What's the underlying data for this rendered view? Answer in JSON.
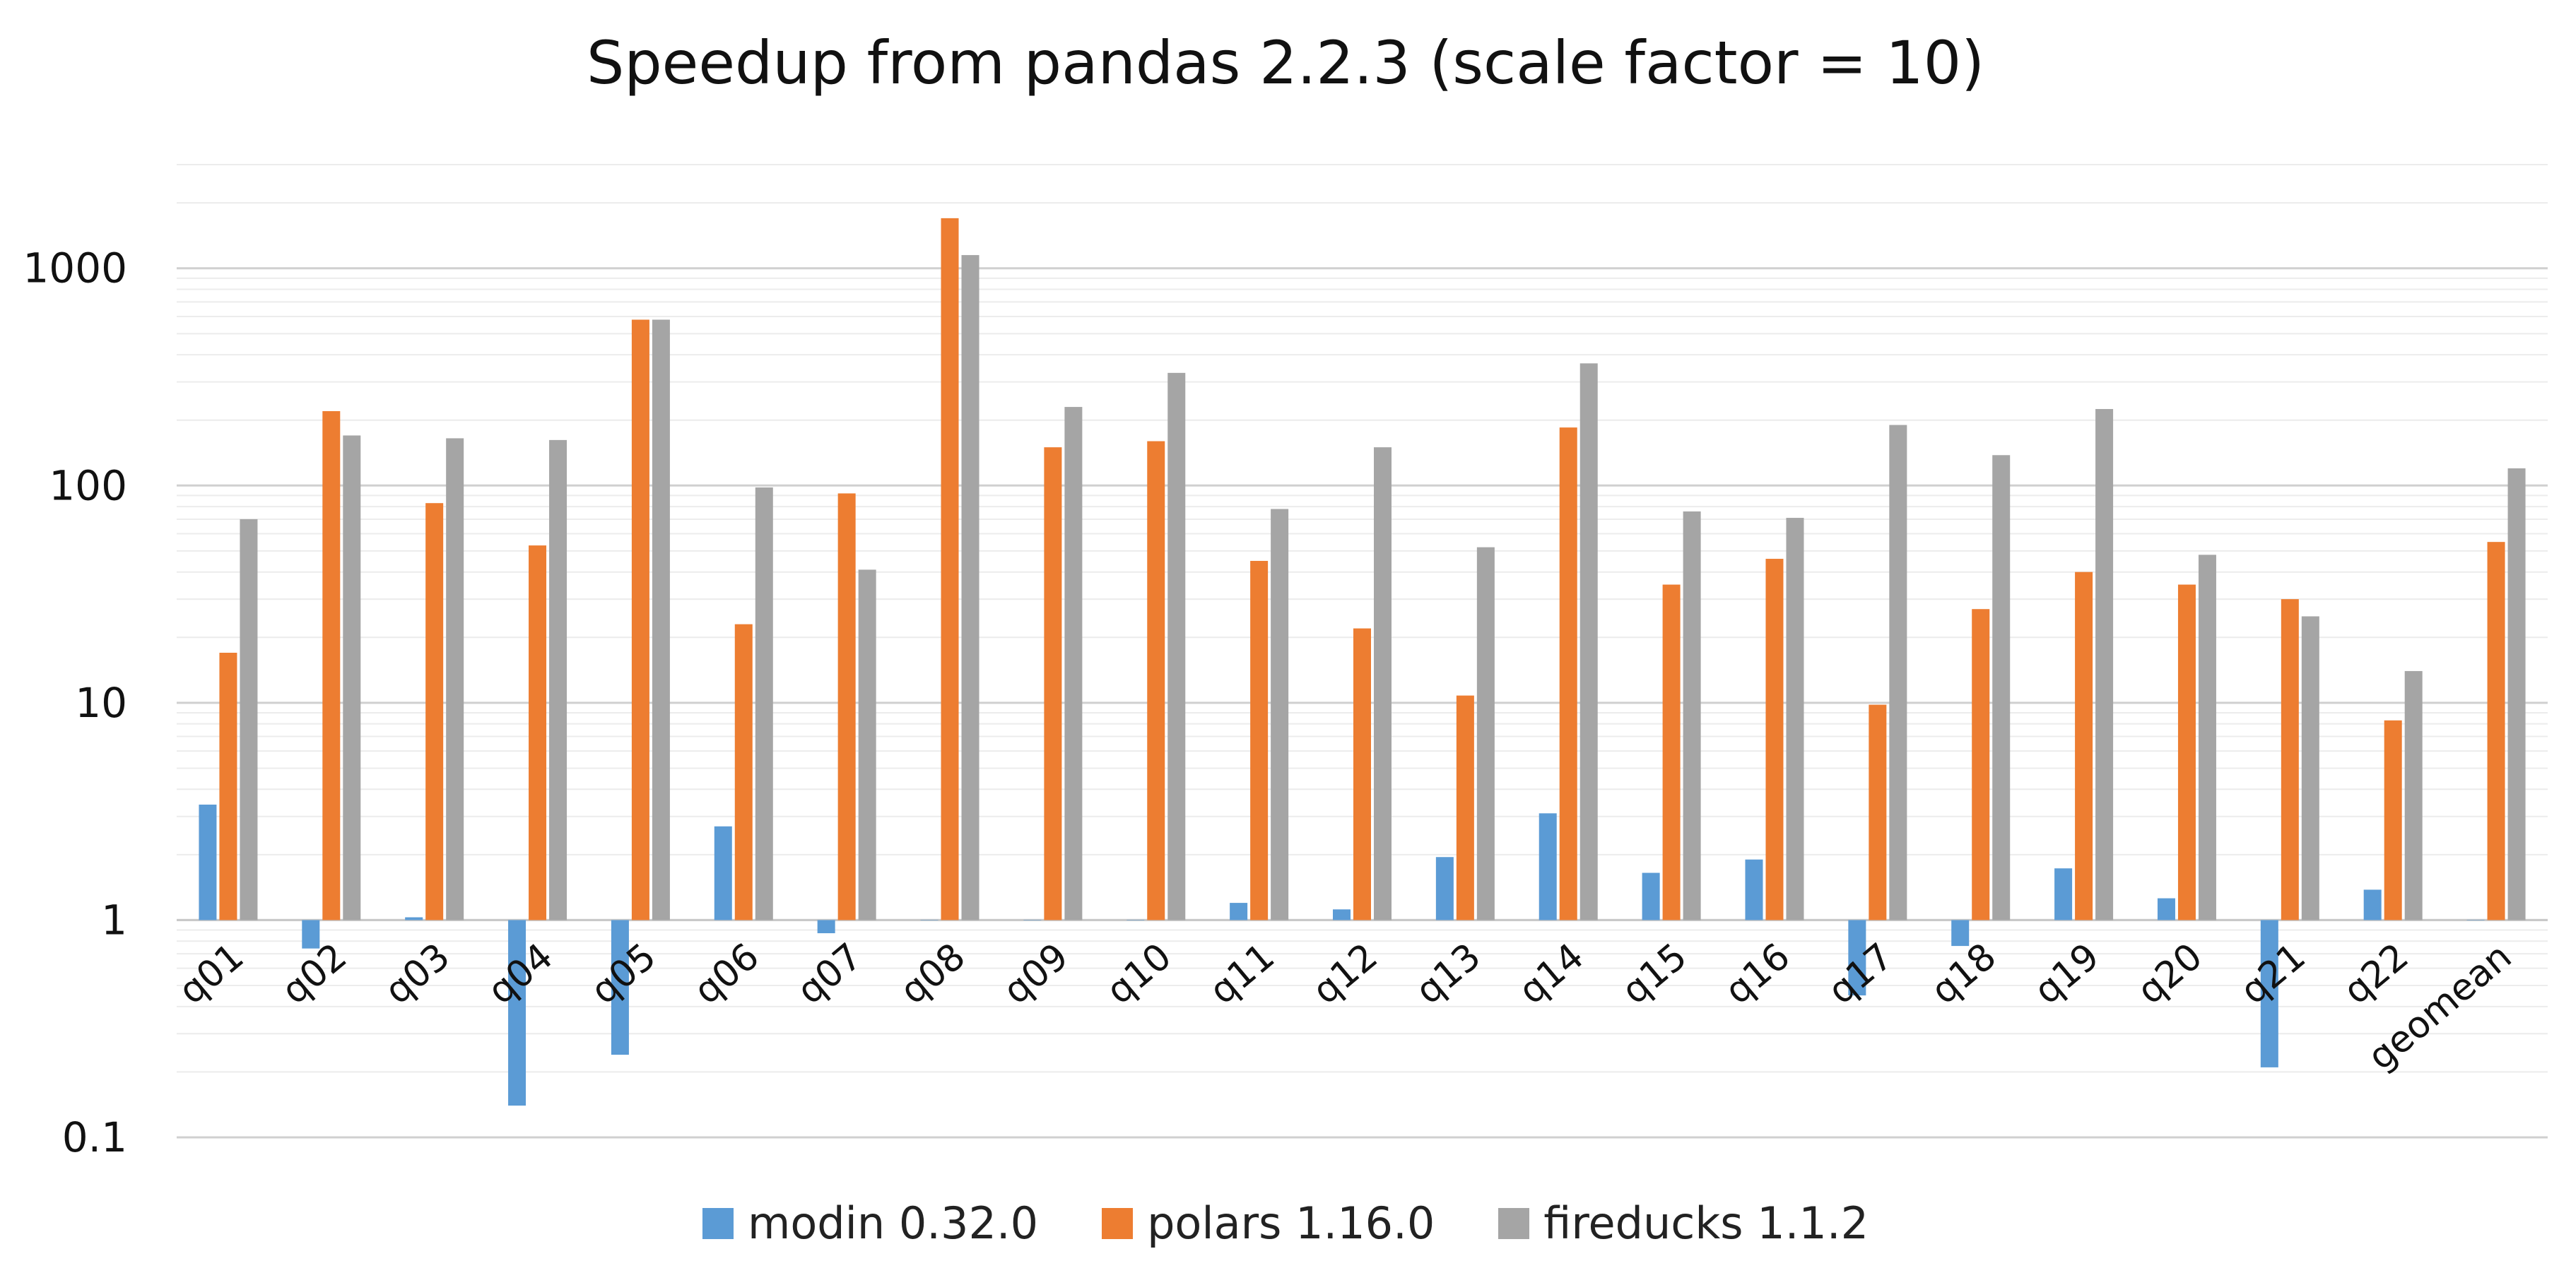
{
  "chart_data": {
    "type": "bar",
    "title": "Speedup from pandas 2.2.3 (scale factor = 10)",
    "xlabel": "",
    "ylabel": "",
    "yscale": "log",
    "ylim": [
      0.1,
      3000
    ],
    "baseline": 1,
    "yticks": [
      "0.1",
      "1",
      "10",
      "100",
      "1000"
    ],
    "grid": true,
    "legend_position": "bottom",
    "categories": [
      "q01",
      "q02",
      "q03",
      "q04",
      "q05",
      "q06",
      "q07",
      "q08",
      "q09",
      "q10",
      "q11",
      "q12",
      "q13",
      "q14",
      "q15",
      "q16",
      "q17",
      "q18",
      "q19",
      "q20",
      "q21",
      "q22",
      "geomean"
    ],
    "series": [
      {
        "name": "modin 0.32.0",
        "color": "#5b9bd5",
        "values": [
          3.4,
          0.74,
          1.03,
          0.14,
          0.24,
          2.7,
          0.87,
          1.0,
          1.0,
          1.0,
          1.2,
          1.12,
          1.95,
          3.1,
          1.65,
          1.9,
          0.45,
          0.76,
          1.73,
          1.26,
          0.21,
          1.38,
          1.0
        ]
      },
      {
        "name": "polars 1.16.0",
        "color": "#ed7d31",
        "values": [
          17,
          220,
          83,
          53,
          580,
          23,
          92,
          1700,
          150,
          160,
          45,
          22,
          10.8,
          185,
          35,
          46,
          9.8,
          27,
          40,
          35,
          30,
          8.3,
          55
        ]
      },
      {
        "name": "fireducks 1.1.2",
        "color": "#a5a5a5",
        "values": [
          70,
          170,
          165,
          162,
          580,
          98,
          41,
          1150,
          230,
          330,
          78,
          150,
          52,
          365,
          76,
          71,
          190,
          138,
          225,
          48,
          25,
          14,
          120
        ]
      }
    ]
  }
}
